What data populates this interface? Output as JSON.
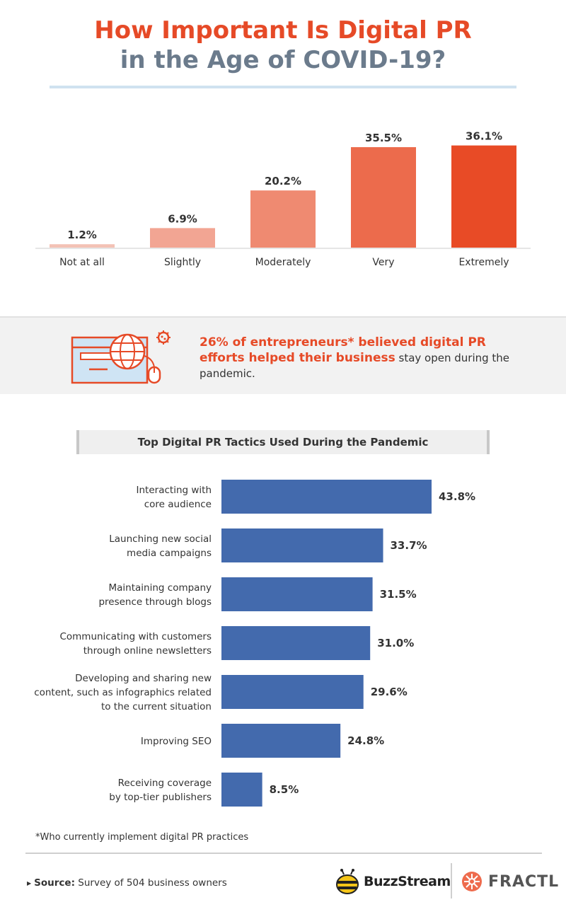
{
  "title": {
    "line1": "How Important Is Digital PR",
    "line2": "in the Age of COVID-19?"
  },
  "callout": {
    "highlight": "26% of entrepreneurs* believed digital PR efforts helped their business",
    "rest": " stay open during the pandemic."
  },
  "footnote": "*Who currently implement digital PR practices",
  "source": {
    "label": "Source:",
    "text": " Survey of 504 business owners"
  },
  "logos": {
    "buzzstream": "BuzzStream",
    "fractl": "FRACTL"
  },
  "colors": {
    "title_orange": "#e64a27",
    "title_gray": "#6b7b8c",
    "bar_blue": "#436aad"
  },
  "chart_data": [
    {
      "type": "bar",
      "title": "",
      "categories": [
        "Not at all",
        "Slightly",
        "Moderately",
        "Very",
        "Extremely"
      ],
      "values": [
        1.2,
        6.9,
        20.2,
        35.5,
        36.1
      ],
      "value_labels": [
        "1.2%",
        "6.9%",
        "20.2%",
        "35.5%",
        "36.1%"
      ],
      "colors": [
        "#f3c2b5",
        "#f2a593",
        "#ef8a71",
        "#ec6b4c",
        "#e84b26"
      ],
      "ylim": [
        0,
        40
      ],
      "grid": false,
      "legend": "none"
    },
    {
      "type": "bar",
      "orientation": "horizontal",
      "title": "Top Digital PR Tactics Used During the Pandemic",
      "categories": [
        [
          "Interacting with",
          "core audience"
        ],
        [
          "Launching new social",
          "media campaigns"
        ],
        [
          "Maintaining company",
          "presence through blogs"
        ],
        [
          "Communicating with customers",
          "through online newsletters"
        ],
        [
          "Developing and sharing new",
          "content, such as infographics related",
          "to the current situation"
        ],
        [
          "Improving SEO"
        ],
        [
          "Receiving coverage",
          "by top-tier publishers"
        ]
      ],
      "values": [
        43.8,
        33.7,
        31.5,
        31.0,
        29.6,
        24.8,
        8.5
      ],
      "value_labels": [
        "43.8%",
        "33.7%",
        "31.5%",
        "31.0%",
        "29.6%",
        "24.8%",
        "8.5%"
      ],
      "xlim": [
        0,
        43.8
      ],
      "grid": false,
      "legend": "none"
    }
  ]
}
